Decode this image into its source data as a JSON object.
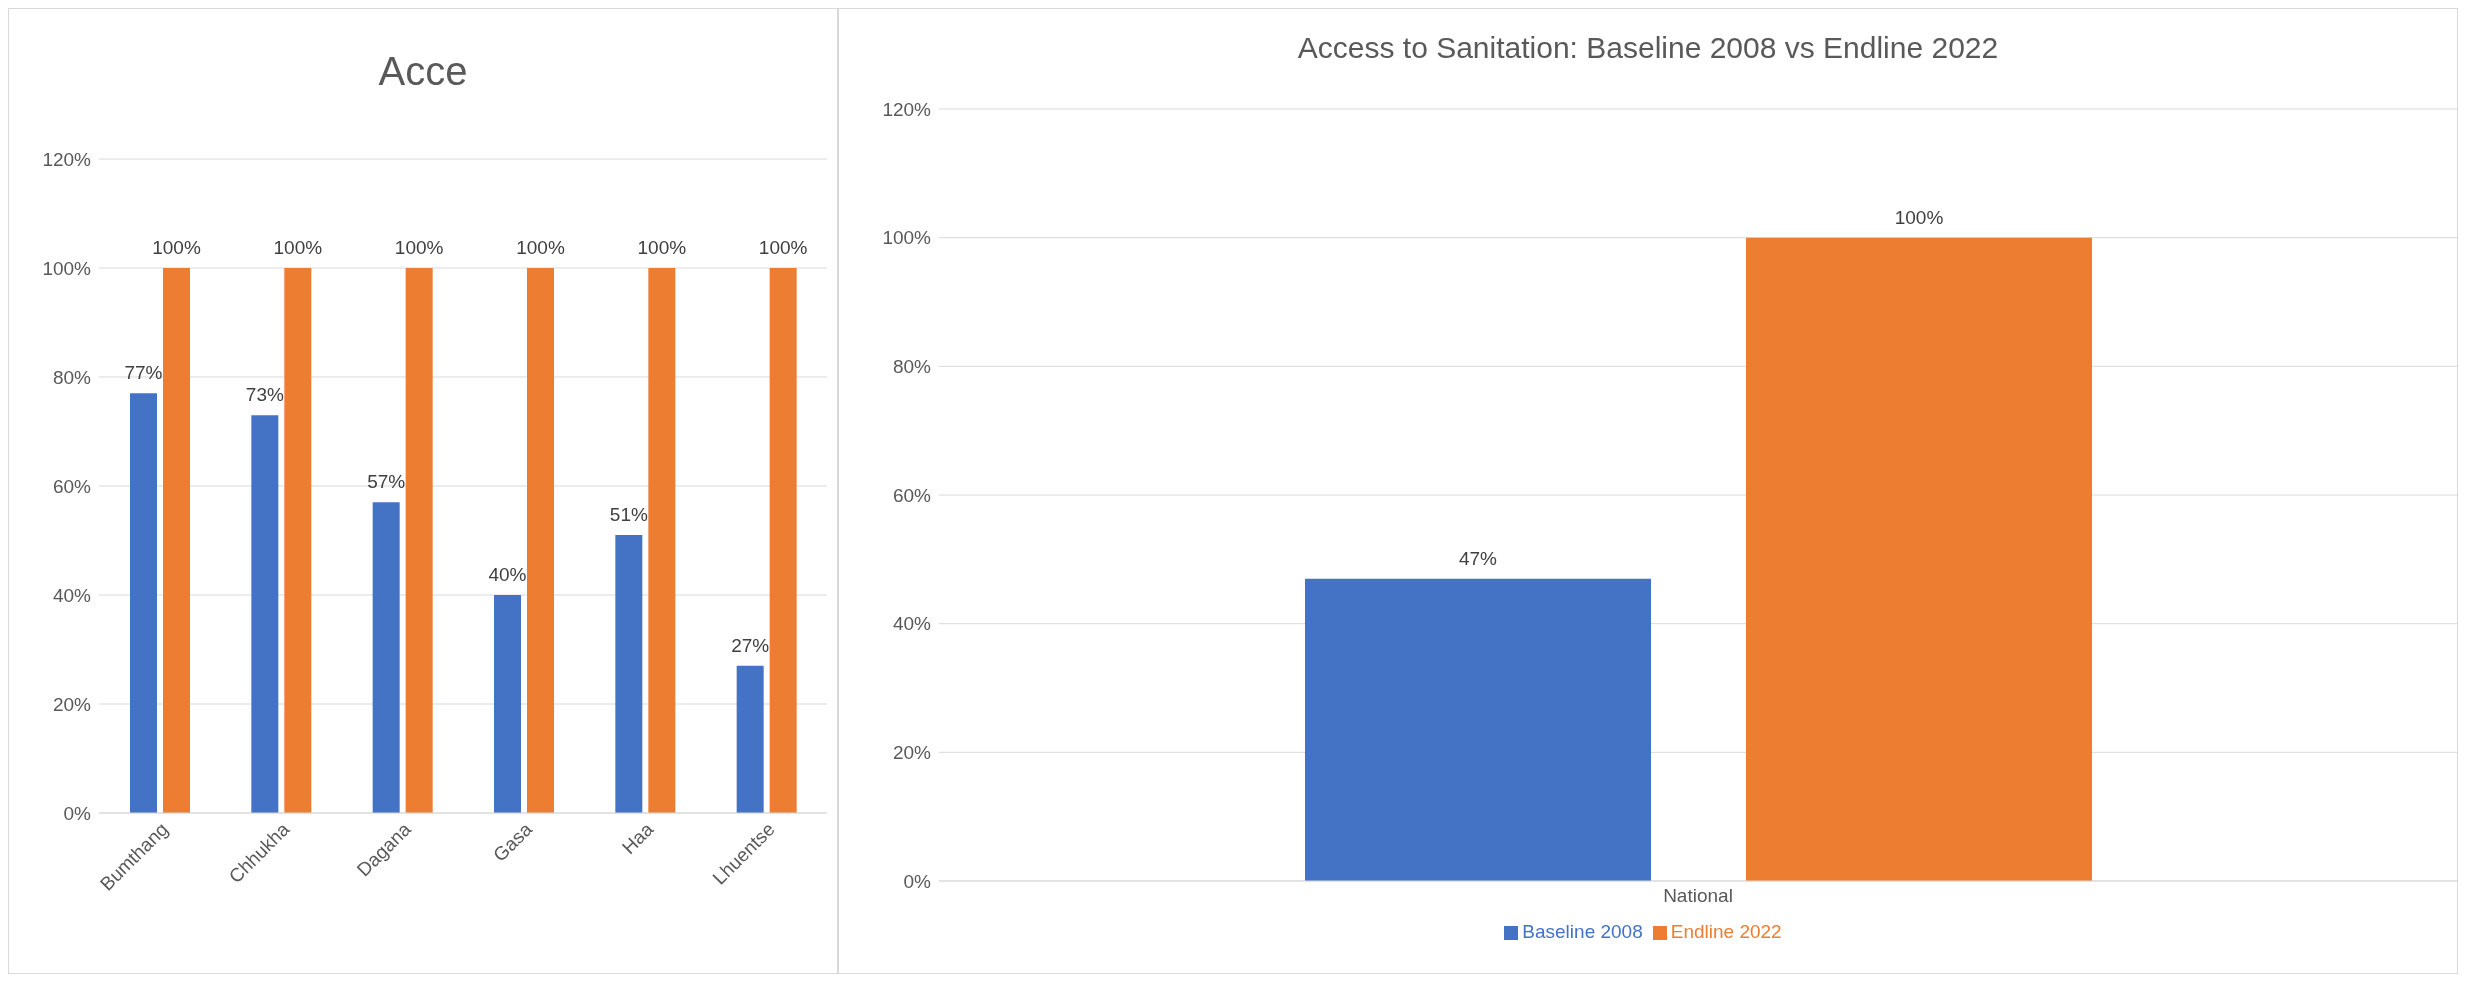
{
  "chart_data": [
    {
      "type": "bar",
      "title": "Acce",
      "categories": [
        "Bumthang",
        "Chhukha",
        "Dagana",
        "Gasa",
        "Haa",
        "Lhuentse"
      ],
      "series": [
        {
          "color": "#4472c4",
          "values": [
            77,
            73,
            57,
            40,
            51,
            27
          ],
          "value_labels": [
            "77%",
            "73%",
            "57%",
            "40%",
            "51%",
            "27%"
          ]
        },
        {
          "color": "#ed7d31",
          "values": [
            100,
            100,
            100,
            100,
            100,
            100
          ],
          "value_labels": [
            "100%",
            "100%",
            "100%",
            "100%",
            "100%",
            "100%"
          ]
        }
      ],
      "ylim": [
        0,
        120
      ],
      "yticks": [
        {
          "value": 0,
          "label": "0%"
        },
        {
          "value": 20,
          "label": "20%"
        },
        {
          "value": 40,
          "label": "40%"
        },
        {
          "value": 60,
          "label": "60%"
        },
        {
          "value": 80,
          "label": "80%"
        },
        {
          "value": 100,
          "label": "100%"
        },
        {
          "value": 120,
          "label": "120%"
        }
      ],
      "grid": "y",
      "legend": false
    },
    {
      "type": "bar",
      "title": "Access to Sanitation: Baseline 2008 vs Endline 2022",
      "categories": [
        "National"
      ],
      "series": [
        {
          "name": "Baseline 2008",
          "color": "#4472c4",
          "values": [
            47
          ],
          "value_labels": [
            "47%"
          ]
        },
        {
          "name": "Endline 2022",
          "color": "#ed7d31",
          "values": [
            100
          ],
          "value_labels": [
            "100%"
          ]
        }
      ],
      "ylim": [
        0,
        120
      ],
      "yticks": [
        {
          "value": 0,
          "label": "0%"
        },
        {
          "value": 20,
          "label": "20%"
        },
        {
          "value": 40,
          "label": "40%"
        },
        {
          "value": 60,
          "label": "60%"
        },
        {
          "value": 80,
          "label": "80%"
        },
        {
          "value": 100,
          "label": "100%"
        },
        {
          "value": 120,
          "label": "120%"
        }
      ],
      "grid": "y",
      "legend": "bottom"
    }
  ]
}
